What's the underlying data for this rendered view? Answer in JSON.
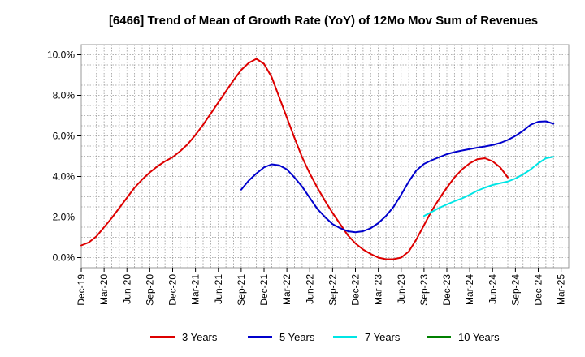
{
  "chart_data": {
    "type": "line",
    "title": "[6466]  Trend of Mean of Growth Rate (YoY) of 12Mo Mov Sum of Revenues",
    "xlabel": "",
    "ylabel": "",
    "ylim": [
      -0.5,
      10.5
    ],
    "yticks": [
      0,
      2,
      4,
      6,
      8,
      10
    ],
    "ytick_labels": [
      "0.0%",
      "2.0%",
      "4.0%",
      "6.0%",
      "8.0%",
      "10.0%"
    ],
    "x_start": "Dec-19",
    "x_months": 64,
    "xtick_labels": [
      "Dec-19",
      "Mar-20",
      "Jun-20",
      "Sep-20",
      "Dec-20",
      "Mar-21",
      "Jun-21",
      "Sep-21",
      "Dec-21",
      "Mar-22",
      "Jun-22",
      "Sep-22",
      "Dec-22",
      "Mar-23",
      "Jun-23",
      "Sep-23",
      "Dec-23",
      "Mar-24",
      "Jun-24",
      "Sep-24",
      "Dec-24",
      "Mar-25"
    ],
    "grid": true,
    "legend_position": "bottom",
    "series": [
      {
        "name": "3 Years",
        "color": "#dd0000",
        "start_index": 0,
        "values": [
          0.6,
          0.75,
          1.05,
          1.5,
          1.95,
          2.45,
          2.95,
          3.45,
          3.85,
          4.2,
          4.5,
          4.75,
          4.95,
          5.25,
          5.6,
          6.05,
          6.55,
          7.1,
          7.65,
          8.2,
          8.75,
          9.25,
          9.6,
          9.8,
          9.55,
          8.9,
          7.9,
          6.9,
          5.9,
          4.95,
          4.15,
          3.45,
          2.8,
          2.2,
          1.65,
          1.1,
          0.7,
          0.4,
          0.18,
          0.0,
          -0.08,
          -0.08,
          0.0,
          0.3,
          0.9,
          1.6,
          2.3,
          2.9,
          3.45,
          3.95,
          4.35,
          4.65,
          4.85,
          4.9,
          4.75,
          4.45,
          3.95
        ]
      },
      {
        "name": "5 Years",
        "color": "#0000cc",
        "start_index": 21,
        "values": [
          3.35,
          3.8,
          4.15,
          4.45,
          4.6,
          4.55,
          4.35,
          3.95,
          3.5,
          2.95,
          2.4,
          2.0,
          1.65,
          1.45,
          1.3,
          1.25,
          1.3,
          1.45,
          1.7,
          2.05,
          2.5,
          3.1,
          3.75,
          4.3,
          4.62,
          4.8,
          4.95,
          5.1,
          5.2,
          5.28,
          5.35,
          5.42,
          5.48,
          5.55,
          5.65,
          5.8,
          6.0,
          6.25,
          6.55,
          6.7,
          6.72,
          6.6
        ]
      },
      {
        "name": "7 Years",
        "color": "#00e5e5",
        "start_index": 45,
        "values": [
          2.05,
          2.25,
          2.45,
          2.62,
          2.78,
          2.92,
          3.1,
          3.3,
          3.45,
          3.58,
          3.67,
          3.75,
          3.9,
          4.1,
          4.35,
          4.65,
          4.9,
          4.97
        ]
      },
      {
        "name": "10 Years",
        "color": "#008000",
        "start_index": 0,
        "values": []
      }
    ]
  }
}
